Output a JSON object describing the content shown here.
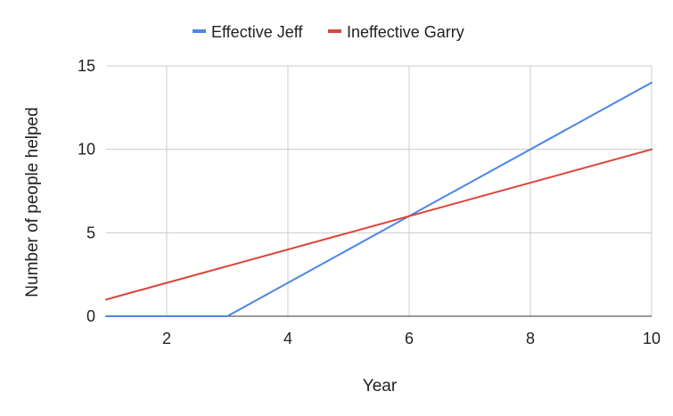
{
  "chart_data": {
    "type": "line",
    "title": "",
    "xlabel": "Year",
    "ylabel": "Number of people helped",
    "xlim": [
      1,
      10
    ],
    "ylim": [
      0,
      15
    ],
    "x_ticks": [
      2,
      4,
      6,
      8,
      10
    ],
    "y_ticks": [
      0,
      5,
      10,
      15
    ],
    "grid": true,
    "legend_position": "top-center",
    "series": [
      {
        "name": "Effective Jeff",
        "color": "#4a86e8",
        "points": [
          [
            1,
            0
          ],
          [
            3,
            0
          ],
          [
            10,
            14
          ]
        ]
      },
      {
        "name": "Ineffective Garry",
        "color": "#db4437",
        "points": [
          [
            1,
            1
          ],
          [
            10,
            10
          ]
        ]
      }
    ]
  }
}
